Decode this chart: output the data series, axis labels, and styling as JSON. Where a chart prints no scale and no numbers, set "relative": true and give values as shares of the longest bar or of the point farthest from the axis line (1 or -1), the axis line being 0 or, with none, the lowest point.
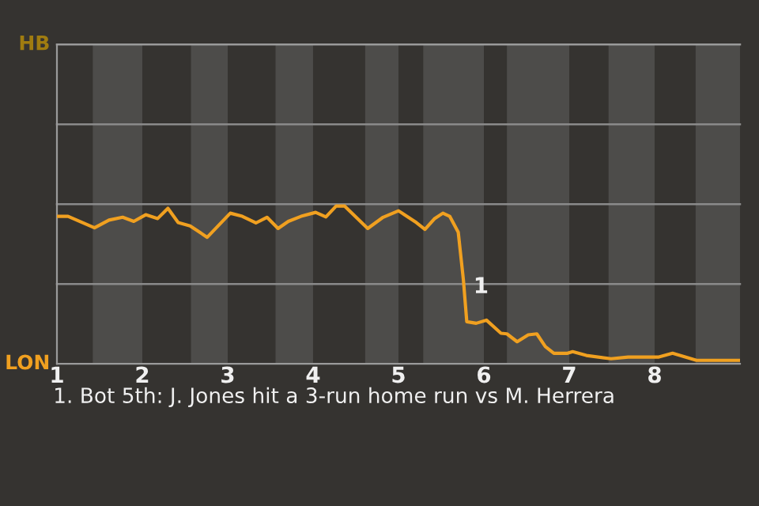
{
  "chart_data": {
    "type": "line",
    "relative": true,
    "x": [
      1.0,
      1.13,
      1.44,
      1.61,
      1.77,
      1.9,
      2.04,
      2.18,
      2.3,
      2.42,
      2.56,
      2.76,
      3.03,
      3.17,
      3.33,
      3.46,
      3.59,
      3.71,
      3.86,
      4.03,
      4.15,
      4.27,
      4.37,
      4.64,
      4.82,
      5.0,
      5.21,
      5.31,
      5.42,
      5.52,
      5.6,
      5.7,
      5.76,
      5.8,
      5.91,
      6.03,
      6.2,
      6.27,
      6.39,
      6.52,
      6.62,
      6.72,
      6.82,
      6.98,
      7.04,
      7.2,
      7.49,
      7.69,
      8.05,
      8.21,
      8.49,
      9.0
    ],
    "series": [
      {
        "color": "#f0a020",
        "values": [
          0.935,
          0.935,
          0.862,
          0.911,
          0.929,
          0.903,
          0.945,
          0.921,
          0.986,
          0.895,
          0.874,
          0.802,
          0.955,
          0.935,
          0.893,
          0.929,
          0.858,
          0.903,
          0.935,
          0.96,
          0.931,
          1,
          1,
          0.858,
          0.929,
          0.97,
          0.895,
          0.852,
          0.919,
          0.955,
          0.935,
          0.834,
          0.534,
          0.267,
          0.257,
          0.277,
          0.194,
          0.19,
          0.14,
          0.184,
          0.19,
          0.109,
          0.067,
          0.067,
          0.077,
          0.053,
          0.032,
          0.043,
          0.043,
          0.067,
          0.022,
          0.022
        ]
      }
    ],
    "xlim": [
      1,
      9
    ],
    "xticks": [
      1,
      2,
      3,
      4,
      5,
      6,
      7,
      8
    ],
    "ref_lines": [
      {
        "axis": "y",
        "value": 0.506,
        "color": "#8a8a8a"
      },
      {
        "axis": "y",
        "value": 1.012,
        "color": "#8a8a8a"
      },
      {
        "axis": "y",
        "value": 1.518,
        "color": "#8a8a8a"
      },
      {
        "axis": "y",
        "value": 2.024,
        "color": "#9a9a9a"
      }
    ],
    "bands": [
      {
        "axis": "x",
        "from": 1.42,
        "to": 2,
        "color": "#4d4c4a"
      },
      {
        "axis": "x",
        "from": 2.57,
        "to": 3,
        "color": "#4d4c4a"
      },
      {
        "axis": "x",
        "from": 3.56,
        "to": 4,
        "color": "#4d4c4a"
      },
      {
        "axis": "x",
        "from": 4.61,
        "to": 5,
        "color": "#4d4c4a"
      },
      {
        "axis": "x",
        "from": 5.29,
        "to": 6,
        "color": "#4d4c4a"
      },
      {
        "axis": "x",
        "from": 6.27,
        "to": 7,
        "color": "#4d4c4a"
      },
      {
        "axis": "x",
        "from": 7.46,
        "to": 8,
        "color": "#4d4c4a"
      },
      {
        "axis": "x",
        "from": 8.48,
        "to": 9,
        "color": "#4d4c4a"
      }
    ],
    "annotations": [
      {
        "text": "1",
        "x": 5.8,
        "y": 0.486
      },
      "HB",
      "LON",
      "1. Bot 5th: J. Jones hit a 3-run home run vs M. Herrera"
    ]
  }
}
